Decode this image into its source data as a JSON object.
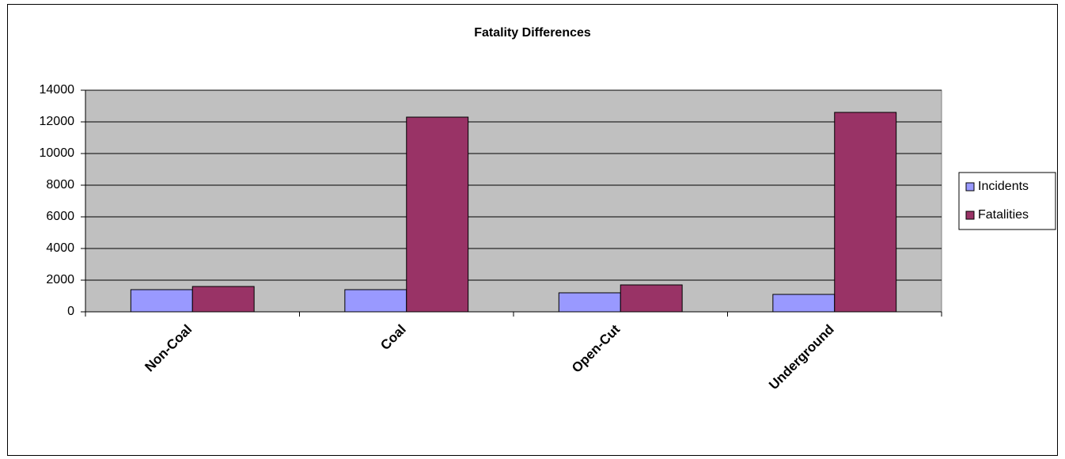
{
  "chart_data": {
    "type": "bar",
    "title": "Fatality Differences",
    "categories": [
      "Non-Coal",
      "Coal",
      "Open-Cut",
      "Underground"
    ],
    "series": [
      {
        "name": "Incidents",
        "color": "#9999ff",
        "values": [
          1400,
          1400,
          1200,
          1100
        ]
      },
      {
        "name": "Fatalities",
        "color": "#993366",
        "values": [
          1600,
          12300,
          1700,
          12600
        ]
      }
    ],
    "ylim": [
      0,
      14000
    ],
    "yticks": [
      0,
      2000,
      4000,
      6000,
      8000,
      10000,
      12000,
      14000
    ],
    "grid": true,
    "legend": "right"
  }
}
